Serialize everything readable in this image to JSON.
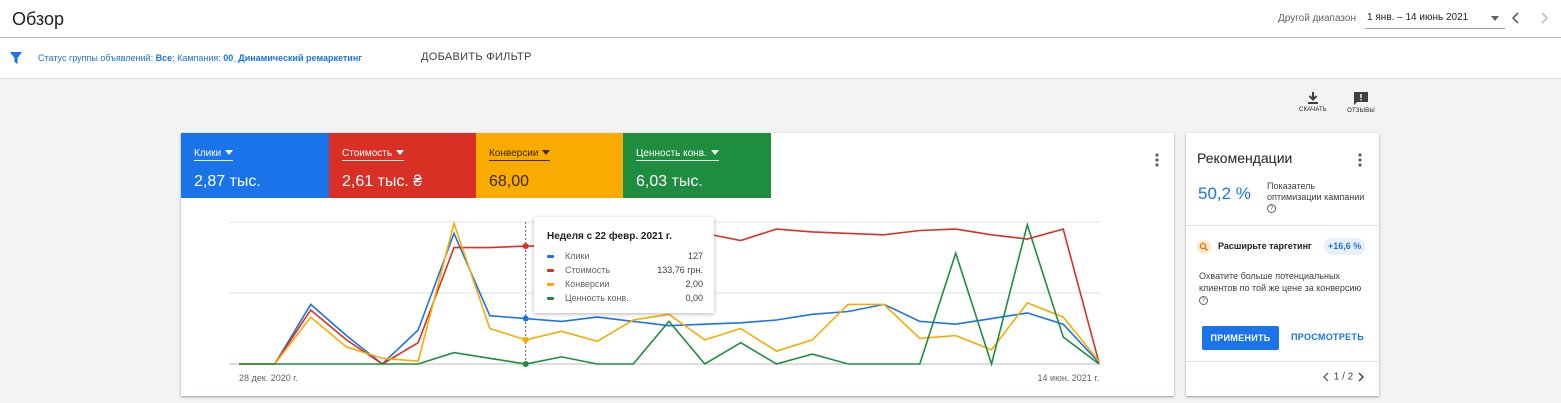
{
  "header": {
    "title": "Обзор",
    "range_label": "Другой диапазон",
    "range_value": "1 янв. – 14 июнь 2021"
  },
  "filter": {
    "prefix": "Статус группы объявлений: ",
    "status_value": "Все",
    "campaign_prefix": "; Кампания: ",
    "campaign_value": "00_Динамический ремаркетинг",
    "add_label": "ДОБАВИТЬ ФИЛЬТР"
  },
  "tools": {
    "download_label": "СКАЧАТЬ",
    "feedback_label": "ОТЗЫВЫ"
  },
  "metrics": [
    {
      "label": "Клики",
      "value": "2,87 тыс.",
      "color": "#1a73e8"
    },
    {
      "label": "Стоимость",
      "value": "2,61 тыс. ₴",
      "color": "#d93025"
    },
    {
      "label": "Конверсии",
      "value": "68,00",
      "color": "#f9ab00"
    },
    {
      "label": "Ценность конв.",
      "value": "6,03 тыс.",
      "color": "#1e8e3e"
    }
  ],
  "chart_data": {
    "type": "line",
    "x_start_label": "28 дек. 2020 г.",
    "x_end_label": "14 июн. 2021 г.",
    "series": [
      {
        "color": "#1a73e8",
        "values": [
          0,
          0,
          0.42,
          0.2,
          0,
          0.24,
          0.92,
          0.34,
          0.32,
          0.3,
          0.33,
          0.3,
          0.27,
          0.28,
          0.29,
          0.31,
          0.35,
          0.37,
          0.42,
          0.3,
          0.28,
          0.32,
          0.36,
          0.28,
          0.01
        ]
      },
      {
        "color": "#d93025",
        "values": [
          0,
          0,
          0.38,
          0.17,
          0,
          0.15,
          0.82,
          0.82,
          0.83,
          0.83,
          0.84,
          0.86,
          0.88,
          0.92,
          0.87,
          0.95,
          0.93,
          0.92,
          0.91,
          0.94,
          0.95,
          0.91,
          0.88,
          0.95,
          0.01
        ]
      },
      {
        "color": "#f9ab00",
        "values": [
          0,
          0,
          0.33,
          0.12,
          0.04,
          0.02,
          0.99,
          0.25,
          0.17,
          0.23,
          0.16,
          0.31,
          0.35,
          0.17,
          0.25,
          0.09,
          0.17,
          0.42,
          0.42,
          0.18,
          0.2,
          0.1,
          0.43,
          0.33,
          0.02
        ]
      },
      {
        "color": "#1e8e3e",
        "values": [
          0,
          0,
          0,
          0,
          0,
          0,
          0.08,
          0.04,
          0,
          0.05,
          0,
          0,
          0.3,
          0,
          0.15,
          0,
          0.07,
          0,
          0,
          0,
          0.78,
          0,
          0.98,
          0.19,
          0
        ]
      }
    ],
    "highlight_index": 8,
    "grid": true
  },
  "tooltip": {
    "title": "Неделя с 22 февр. 2021 г.",
    "rows": [
      {
        "name": "Клики",
        "value": "127",
        "color": "#1a73e8"
      },
      {
        "name": "Стоимость",
        "value": "133,76 грн.",
        "color": "#d93025"
      },
      {
        "name": "Конверсии",
        "value": "2,00",
        "color": "#f9ab00"
      },
      {
        "name": "Ценность конв.",
        "value": "0,00",
        "color": "#1e8e3e"
      }
    ]
  },
  "reco": {
    "title": "Рекомендации",
    "score": "50,2 %",
    "score_text": "Показатель оптимизации кампании",
    "item_label": "Расширьте таргетинг",
    "item_badge": "+16,6 %",
    "item_desc": "Охватите больше потенциальных клиентов по той же цене за конверсию",
    "apply_label": "ПРИМЕНИТЬ",
    "view_label": "ПРОСМОТРЕТЬ",
    "pager": "1 / 2"
  }
}
